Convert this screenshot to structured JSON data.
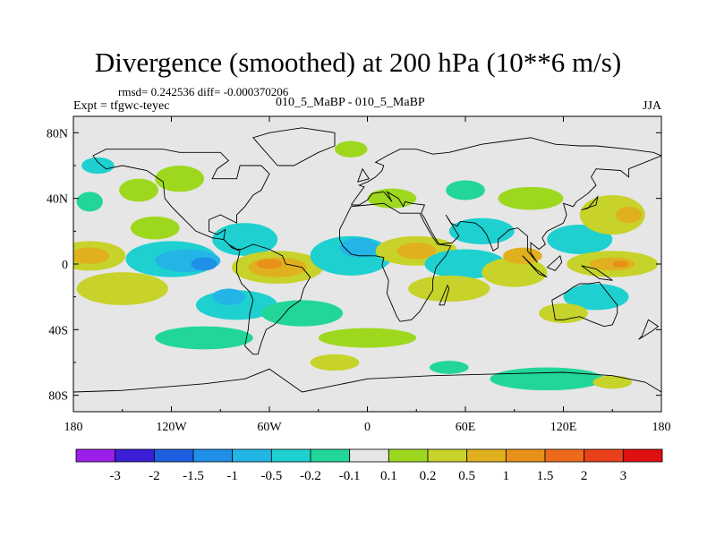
{
  "chart_data": {
    "type": "contour_map",
    "title": "Divergence (smoothed) at 200 hPa (10**6 m/s)",
    "stats_label": "rmsd= 0.242536 diff= -0.000370206",
    "experiment_label": "Expt = tfgwc-teyec",
    "subtitle": "010_5_MaBP - 010_5_MaBP",
    "season": "JJA",
    "x_ticks": [
      "180",
      "120W",
      "60W",
      "0",
      "60E",
      "120E",
      "180"
    ],
    "y_ticks": [
      "80N",
      "40N",
      "0",
      "40S",
      "80S"
    ],
    "xlim": [
      -180,
      180
    ],
    "ylim": [
      -90,
      90
    ],
    "levels": [
      "-3",
      "-2",
      "-1.5",
      "-1",
      "-0.5",
      "-0.2",
      "-0.1",
      "0.1",
      "0.2",
      "0.5",
      "1",
      "1.5",
      "2",
      "3"
    ],
    "colors": {
      "below_-3": "#9b1fe8",
      "-3_-2": "#3a1fd6",
      "-2_-1.5": "#1e5ee0",
      "-1.5_-1": "#1f8fe8",
      "-1_-0.5": "#23b5e6",
      "-0.5_-0.2": "#1fd0d0",
      "-0.2_-0.1": "#22d69a",
      "-0.1_0.1": "#e6e6e6",
      "0.1_0.2": "#9ed81e",
      "0.2_0.5": "#c7d22a",
      "0.5_1": "#e0b01e",
      "1_1.5": "#e8901a",
      "1.5_2": "#ec6a1a",
      "2_3": "#e8401a",
      "above_3": "#e01010"
    },
    "colorbar_order": [
      "below_-3",
      "-3_-2",
      "-2_-1.5",
      "-1.5_-1",
      "-1_-0.5",
      "-0.5_-0.2",
      "-0.2_-0.1",
      "-0.1_0.1",
      "0.1_0.2",
      "0.2_0.5",
      "0.5_1",
      "1_1.5",
      "1.5_2",
      "2_3",
      "above_3"
    ],
    "blobs": [
      {
        "lon": -170,
        "lat": 5,
        "rlon": 22,
        "rlat": 9,
        "band": "0.2_0.5"
      },
      {
        "lon": -170,
        "lat": 5,
        "rlon": 12,
        "rlat": 5,
        "band": "0.5_1"
      },
      {
        "lon": -150,
        "lat": -15,
        "rlon": 28,
        "rlat": 10,
        "band": "0.2_0.5"
      },
      {
        "lon": -165,
        "lat": 60,
        "rlon": 10,
        "rlat": 5,
        "band": "-0.5_-0.2"
      },
      {
        "lon": -140,
        "lat": 45,
        "rlon": 12,
        "rlat": 7,
        "band": "0.1_0.2"
      },
      {
        "lon": -115,
        "lat": 52,
        "rlon": 15,
        "rlat": 8,
        "band": "0.1_0.2"
      },
      {
        "lon": -170,
        "lat": 38,
        "rlon": 8,
        "rlat": 6,
        "band": "-0.2_-0.1"
      },
      {
        "lon": -120,
        "lat": 3,
        "rlon": 28,
        "rlat": 11,
        "band": "-0.5_-0.2"
      },
      {
        "lon": -110,
        "lat": 2,
        "rlon": 20,
        "rlat": 7,
        "band": "-1_-0.5"
      },
      {
        "lon": -100,
        "lat": 0,
        "rlon": 8,
        "rlat": 4,
        "band": "-1.5_-1"
      },
      {
        "lon": -130,
        "lat": 22,
        "rlon": 15,
        "rlat": 7,
        "band": "0.1_0.2"
      },
      {
        "lon": -75,
        "lat": 15,
        "rlon": 20,
        "rlat": 10,
        "band": "-0.5_-0.2"
      },
      {
        "lon": -55,
        "lat": -2,
        "rlon": 28,
        "rlat": 10,
        "band": "0.2_0.5"
      },
      {
        "lon": -55,
        "lat": -2,
        "rlon": 18,
        "rlat": 6,
        "band": "0.5_1"
      },
      {
        "lon": -60,
        "lat": 0,
        "rlon": 8,
        "rlat": 3,
        "band": "1_1.5"
      },
      {
        "lon": -80,
        "lat": -25,
        "rlon": 25,
        "rlat": 9,
        "band": "-0.5_-0.2"
      },
      {
        "lon": -85,
        "lat": -20,
        "rlon": 10,
        "rlat": 5,
        "band": "-1_-0.5"
      },
      {
        "lon": -40,
        "lat": -30,
        "rlon": 25,
        "rlat": 8,
        "band": "-0.2_-0.1"
      },
      {
        "lon": -10,
        "lat": 5,
        "rlon": 25,
        "rlat": 12,
        "band": "-0.5_-0.2"
      },
      {
        "lon": -5,
        "lat": 10,
        "rlon": 12,
        "rlat": 6,
        "band": "-1_-0.5"
      },
      {
        "lon": 30,
        "lat": 8,
        "rlon": 25,
        "rlat": 9,
        "band": "0.2_0.5"
      },
      {
        "lon": 30,
        "lat": 8,
        "rlon": 12,
        "rlat": 5,
        "band": "0.5_1"
      },
      {
        "lon": 15,
        "lat": 40,
        "rlon": 15,
        "rlat": 6,
        "band": "0.1_0.2"
      },
      {
        "lon": 60,
        "lat": 45,
        "rlon": 12,
        "rlat": 6,
        "band": "-0.2_-0.1"
      },
      {
        "lon": 70,
        "lat": 20,
        "rlon": 20,
        "rlat": 8,
        "band": "-0.5_-0.2"
      },
      {
        "lon": 60,
        "lat": 0,
        "rlon": 25,
        "rlat": 9,
        "band": "-0.5_-0.2"
      },
      {
        "lon": 50,
        "lat": -15,
        "rlon": 25,
        "rlat": 8,
        "band": "0.2_0.5"
      },
      {
        "lon": 90,
        "lat": -5,
        "rlon": 20,
        "rlat": 9,
        "band": "0.2_0.5"
      },
      {
        "lon": 95,
        "lat": 5,
        "rlon": 12,
        "rlat": 5,
        "band": "0.5_1"
      },
      {
        "lon": 100,
        "lat": 40,
        "rlon": 20,
        "rlat": 7,
        "band": "0.1_0.2"
      },
      {
        "lon": 130,
        "lat": 15,
        "rlon": 20,
        "rlat": 9,
        "band": "-0.5_-0.2"
      },
      {
        "lon": 150,
        "lat": 0,
        "rlon": 28,
        "rlat": 8,
        "band": "0.2_0.5"
      },
      {
        "lon": 150,
        "lat": 0,
        "rlon": 14,
        "rlat": 4,
        "band": "0.5_1"
      },
      {
        "lon": 155,
        "lat": 0,
        "rlon": 5,
        "rlat": 2,
        "band": "1_1.5"
      },
      {
        "lon": 150,
        "lat": 30,
        "rlon": 20,
        "rlat": 12,
        "band": "0.2_0.5"
      },
      {
        "lon": 160,
        "lat": 30,
        "rlon": 8,
        "rlat": 5,
        "band": "0.5_1"
      },
      {
        "lon": 140,
        "lat": -20,
        "rlon": 20,
        "rlat": 8,
        "band": "-0.5_-0.2"
      },
      {
        "lon": 120,
        "lat": -30,
        "rlon": 15,
        "rlat": 6,
        "band": "0.2_0.5"
      },
      {
        "lon": -100,
        "lat": -45,
        "rlon": 30,
        "rlat": 7,
        "band": "-0.2_-0.1"
      },
      {
        "lon": 0,
        "lat": -45,
        "rlon": 30,
        "rlat": 6,
        "band": "0.1_0.2"
      },
      {
        "lon": -20,
        "lat": -60,
        "rlon": 15,
        "rlat": 5,
        "band": "0.2_0.5"
      },
      {
        "lon": 110,
        "lat": -70,
        "rlon": 35,
        "rlat": 7,
        "band": "-0.2_-0.1"
      },
      {
        "lon": 150,
        "lat": -72,
        "rlon": 12,
        "rlat": 4,
        "band": "0.2_0.5"
      },
      {
        "lon": 50,
        "lat": -63,
        "rlon": 12,
        "rlat": 4,
        "band": "-0.2_-0.1"
      },
      {
        "lon": -10,
        "lat": 70,
        "rlon": 10,
        "rlat": 5,
        "band": "0.1_0.2"
      }
    ],
    "coastlines": [
      [
        [
          -168,
          66
        ],
        [
          -160,
          70
        ],
        [
          -140,
          70
        ],
        [
          -125,
          70
        ],
        [
          -115,
          68
        ],
        [
          -100,
          68
        ],
        [
          -90,
          68
        ],
        [
          -85,
          63
        ],
        [
          -92,
          58
        ],
        [
          -95,
          52
        ],
        [
          -80,
          52
        ],
        [
          -78,
          60
        ],
        [
          -65,
          60
        ],
        [
          -60,
          55
        ],
        [
          -65,
          45
        ],
        [
          -70,
          42
        ],
        [
          -75,
          35
        ],
        [
          -80,
          30
        ],
        [
          -80,
          25
        ],
        [
          -90,
          30
        ],
        [
          -97,
          27
        ],
        [
          -97,
          20
        ],
        [
          -92,
          18
        ],
        [
          -87,
          21
        ],
        [
          -88,
          15
        ],
        [
          -83,
          10
        ],
        [
          -78,
          8
        ],
        [
          -80,
          0
        ],
        [
          -80,
          -5
        ],
        [
          -77,
          -12
        ],
        [
          -72,
          -17
        ],
        [
          -70,
          -22
        ],
        [
          -72,
          -30
        ],
        [
          -73,
          -40
        ],
        [
          -75,
          -50
        ],
        [
          -70,
          -55
        ],
        [
          -67,
          -55
        ],
        [
          -65,
          -48
        ],
        [
          -62,
          -40
        ],
        [
          -57,
          -37
        ],
        [
          -53,
          -33
        ],
        [
          -48,
          -27
        ],
        [
          -41,
          -22
        ],
        [
          -39,
          -15
        ],
        [
          -35,
          -8
        ],
        [
          -40,
          -2
        ],
        [
          -50,
          0
        ],
        [
          -52,
          5
        ],
        [
          -60,
          9
        ],
        [
          -70,
          12
        ],
        [
          -77,
          9
        ],
        [
          -80,
          9
        ],
        [
          -85,
          12
        ],
        [
          -88,
          15
        ],
        [
          -95,
          16
        ],
        [
          -105,
          20
        ],
        [
          -110,
          25
        ],
        [
          -115,
          30
        ],
        [
          -120,
          35
        ],
        [
          -124,
          40
        ],
        [
          -125,
          50
        ],
        [
          -135,
          57
        ],
        [
          -150,
          60
        ],
        [
          -160,
          58
        ],
        [
          -165,
          62
        ],
        [
          -168,
          66
        ]
      ],
      [
        [
          -10,
          36
        ],
        [
          -5,
          43
        ],
        [
          -2,
          47
        ],
        [
          -5,
          48
        ],
        [
          0,
          50
        ],
        [
          5,
          53
        ],
        [
          9,
          57
        ],
        [
          10,
          60
        ],
        [
          5,
          62
        ],
        [
          12,
          66
        ],
        [
          20,
          70
        ],
        [
          30,
          70
        ],
        [
          40,
          67
        ],
        [
          50,
          68
        ],
        [
          70,
          73
        ],
        [
          85,
          75
        ],
        [
          100,
          77
        ],
        [
          115,
          73
        ],
        [
          130,
          72
        ],
        [
          140,
          72
        ],
        [
          160,
          70
        ],
        [
          175,
          68
        ],
        [
          180,
          66
        ],
        [
          170,
          62
        ],
        [
          160,
          58
        ],
        [
          160,
          53
        ],
        [
          155,
          57
        ],
        [
          140,
          58
        ],
        [
          137,
          53
        ],
        [
          140,
          48
        ],
        [
          135,
          43
        ],
        [
          128,
          38
        ],
        [
          126,
          35
        ],
        [
          120,
          37
        ],
        [
          122,
          30
        ],
        [
          120,
          25
        ],
        [
          110,
          20
        ],
        [
          107,
          16
        ],
        [
          109,
          12
        ],
        [
          105,
          9
        ],
        [
          100,
          13
        ],
        [
          100,
          7
        ],
        [
          104,
          1
        ],
        [
          98,
          8
        ],
        [
          98,
          17
        ],
        [
          92,
          22
        ],
        [
          87,
          21
        ],
        [
          80,
          15
        ],
        [
          80,
          10
        ],
        [
          77,
          8
        ],
        [
          73,
          18
        ],
        [
          70,
          22
        ],
        [
          66,
          25
        ],
        [
          57,
          26
        ],
        [
          55,
          23
        ],
        [
          51,
          25
        ],
        [
          48,
          30
        ],
        [
          50,
          27
        ],
        [
          56,
          17
        ],
        [
          52,
          13
        ],
        [
          44,
          12
        ],
        [
          42,
          15
        ],
        [
          39,
          20
        ],
        [
          35,
          28
        ],
        [
          33,
          31
        ],
        [
          35,
          36
        ],
        [
          27,
          37
        ],
        [
          23,
          38
        ],
        [
          22,
          35
        ],
        [
          19,
          40
        ],
        [
          12,
          44
        ],
        [
          15,
          38
        ],
        [
          10,
          44
        ],
        [
          3,
          43
        ],
        [
          0,
          39
        ],
        [
          -5,
          36
        ],
        [
          -10,
          36
        ]
      ],
      [
        [
          -17,
          21
        ],
        [
          -10,
          35
        ],
        [
          0,
          36
        ],
        [
          10,
          37
        ],
        [
          20,
          31
        ],
        [
          32,
          31
        ],
        [
          35,
          25
        ],
        [
          39,
          18
        ],
        [
          43,
          12
        ],
        [
          51,
          11
        ],
        [
          48,
          5
        ],
        [
          42,
          -2
        ],
        [
          40,
          -10
        ],
        [
          40,
          -16
        ],
        [
          35,
          -24
        ],
        [
          32,
          -29
        ],
        [
          27,
          -34
        ],
        [
          20,
          -35
        ],
        [
          18,
          -32
        ],
        [
          15,
          -25
        ],
        [
          12,
          -18
        ],
        [
          13,
          -10
        ],
        [
          9,
          -1
        ],
        [
          10,
          4
        ],
        [
          5,
          5
        ],
        [
          -5,
          5
        ],
        [
          -10,
          6
        ],
        [
          -15,
          11
        ],
        [
          -17,
          15
        ],
        [
          -17,
          21
        ]
      ],
      [
        [
          113,
          -22
        ],
        [
          115,
          -34
        ],
        [
          120,
          -34
        ],
        [
          130,
          -32
        ],
        [
          137,
          -35
        ],
        [
          145,
          -38
        ],
        [
          150,
          -37
        ],
        [
          153,
          -30
        ],
        [
          153,
          -25
        ],
        [
          145,
          -15
        ],
        [
          142,
          -11
        ],
        [
          136,
          -12
        ],
        [
          130,
          -12
        ],
        [
          126,
          -14
        ],
        [
          122,
          -17
        ],
        [
          113,
          -22
        ]
      ],
      [
        [
          44,
          -25
        ],
        [
          49,
          -13
        ],
        [
          50,
          -15
        ],
        [
          47,
          -25
        ],
        [
          44,
          -25
        ]
      ],
      [
        [
          -55,
          60
        ],
        [
          -45,
          60
        ],
        [
          -30,
          68
        ],
        [
          -20,
          72
        ],
        [
          -20,
          80
        ],
        [
          -40,
          83
        ],
        [
          -60,
          80
        ],
        [
          -70,
          77
        ],
        [
          -55,
          60
        ]
      ],
      [
        [
          -180,
          -78
        ],
        [
          -150,
          -77
        ],
        [
          -100,
          -73
        ],
        [
          -75,
          -70
        ],
        [
          -60,
          -64
        ],
        [
          -40,
          -78
        ],
        [
          0,
          -70
        ],
        [
          40,
          -68
        ],
        [
          80,
          -67
        ],
        [
          120,
          -66
        ],
        [
          150,
          -68
        ],
        [
          170,
          -72
        ],
        [
          180,
          -78
        ]
      ],
      [
        [
          -6,
          50
        ],
        [
          -3,
          58
        ],
        [
          1,
          52
        ],
        [
          -6,
          50
        ]
      ],
      [
        [
          131,
          33
        ],
        [
          135,
          34
        ],
        [
          141,
          41
        ],
        [
          140,
          36
        ],
        [
          131,
          33
        ]
      ],
      [
        [
          95,
          5
        ],
        [
          105,
          -6
        ],
        [
          110,
          -8
        ],
        [
          103,
          -3
        ],
        [
          95,
          5
        ]
      ],
      [
        [
          110,
          -2
        ],
        [
          118,
          5
        ],
        [
          119,
          1
        ],
        [
          115,
          -4
        ],
        [
          110,
          -2
        ]
      ],
      [
        [
          131,
          -1
        ],
        [
          140,
          -3
        ],
        [
          150,
          -10
        ],
        [
          142,
          -9
        ],
        [
          131,
          -1
        ]
      ],
      [
        [
          166,
          -46
        ],
        [
          174,
          -41
        ],
        [
          178,
          -38
        ],
        [
          172,
          -34
        ],
        [
          168,
          -44
        ],
        [
          166,
          -46
        ]
      ]
    ]
  }
}
